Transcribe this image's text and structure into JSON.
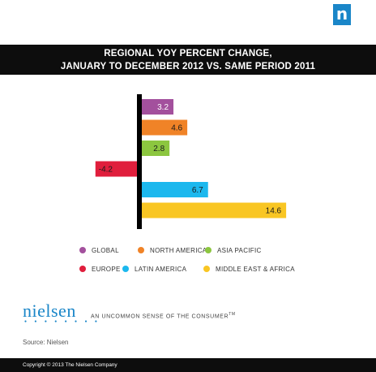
{
  "brand": {
    "badge_letter": "n",
    "badge_color": "#1a86c8",
    "logo_text": "nielsen",
    "logo_dots": "● ● ● ● ● ● ● ●",
    "tagline": "AN UNCOMMON SENSE OF THE CONSUMER",
    "tagline_mark": "TM"
  },
  "header": {
    "title_line1": "REGIONAL YOY PERCENT CHANGE,",
    "title_line2": "JANUARY TO DECEMBER 2012 VS. SAME PERIOD 2011"
  },
  "chart_data": {
    "type": "bar",
    "orientation": "horizontal",
    "title": "REGIONAL YOY PERCENT CHANGE, JANUARY TO DECEMBER 2012 VS. SAME PERIOD 2011",
    "categories": [
      "GLOBAL",
      "NORTH AMERICA",
      "ASIA PACIFIC",
      "EUROPE",
      "LATIN AMERICA",
      "MIDDLE EAST & AFRICA"
    ],
    "values": [
      3.2,
      4.6,
      2.8,
      -4.2,
      6.7,
      14.6
    ],
    "value_labels": [
      "3.2",
      "4.6",
      "2.8",
      "-4.2",
      "6.7",
      "14.6"
    ],
    "colors": [
      "#a3509d",
      "#f08327",
      "#8cc63f",
      "#e01e3c",
      "#1cb8ee",
      "#f9c623"
    ],
    "xlabel": "",
    "ylabel": "",
    "grid": false,
    "legend_placement": "bottom"
  },
  "legend": {
    "items": [
      {
        "label": "GLOBAL",
        "color": "#a3509d"
      },
      {
        "label": "NORTH AMERICA",
        "color": "#f08327"
      },
      {
        "label": "ASIA PACIFIC",
        "color": "#8cc63f"
      },
      {
        "label": "EUROPE",
        "color": "#e01e3c"
      },
      {
        "label": "LATIN AMERICA",
        "color": "#1cb8ee"
      },
      {
        "label": "MIDDLE EAST & AFRICA",
        "color": "#f9c623"
      }
    ]
  },
  "source_text": "Source: Nielsen",
  "footer_text": "Copyright © 2013 The Nielsen Company"
}
